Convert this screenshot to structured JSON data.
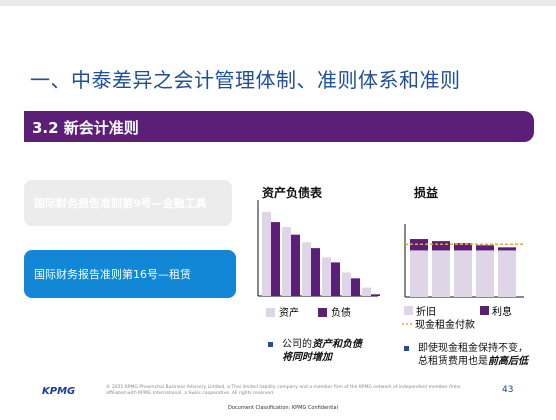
{
  "slide": {
    "title": "一、中泰差异之会计管理体制、准则体系和准则",
    "section": "3.2 新会计准则",
    "cards": [
      {
        "label": "国际财务报告准则第9号—金融工具"
      },
      {
        "label": "国际财务报告准则第16号—租赁"
      }
    ],
    "balance_chart_title": "资产负债表",
    "pl_chart_title": "损益",
    "bullets": [
      {
        "prefix": "公司的",
        "em": "资产和负债",
        "line2": "将同时增加"
      },
      {
        "line1": "即使现金租金保持不变，",
        "line2_prefix": "总租赁费用也是",
        "em": "前高后低"
      }
    ],
    "legend": {
      "asset": "资产",
      "liability": "负债",
      "depreciation": "折旧",
      "interest": "利息",
      "cash_rent": "现金租金付款"
    },
    "footer": {
      "logo": "KPMG",
      "note": "© 2021 KPMG Phoomchai Business Advisory Limited, a Thai limited liability company and a member firm of the KPMG network of independent member firms affiliated with KPMG International, a Swiss cooperative. All rights reserved.",
      "page": "43",
      "classification": "Document Classification: KPMG Confidential"
    },
    "colors": {
      "purple": "#5b1f78",
      "blue": "#1187d6",
      "light_purple": "#ded5e6",
      "title_blue": "#1f4e9b",
      "orange": "#e8a33d"
    }
  },
  "chart_data": [
    {
      "type": "bar",
      "title": "资产负债表",
      "categories": [
        "1",
        "2",
        "3",
        "4",
        "5",
        "6"
      ],
      "series": [
        {
          "name": "资产",
          "values": [
            100,
            82,
            64,
            46,
            28,
            10
          ]
        },
        {
          "name": "负债",
          "values": [
            88,
            73,
            57,
            40,
            21,
            2
          ]
        }
      ]
    },
    {
      "type": "bar",
      "title": "损益",
      "categories": [
        "1",
        "2",
        "3",
        "4",
        "5"
      ],
      "series": [
        {
          "name": "折旧",
          "values": [
            45,
            45,
            45,
            45,
            45
          ]
        },
        {
          "name": "利息",
          "values": [
            11,
            9,
            7,
            5,
            3
          ]
        }
      ],
      "reference_line": {
        "name": "现金租金付款",
        "value": 51
      }
    }
  ]
}
